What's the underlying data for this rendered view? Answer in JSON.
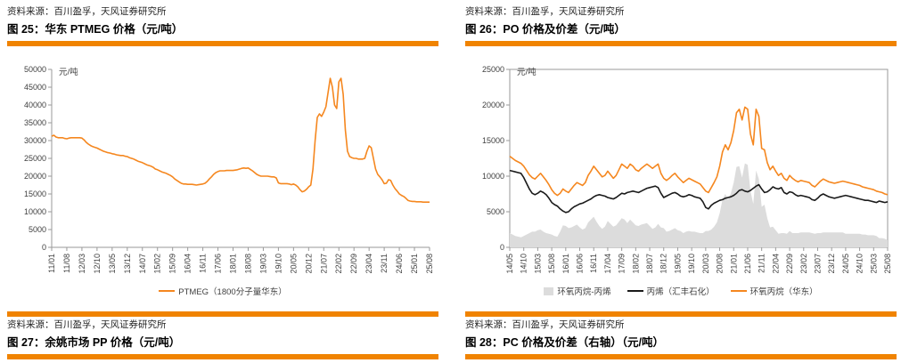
{
  "theme": {
    "accent": "#F08300",
    "orange_line": "#F5871F",
    "black_line": "#1A1A1A",
    "gray_area": "#DCDCDC",
    "axis": "#9A9A9A",
    "tick_text": "#404040"
  },
  "panels": [
    {
      "source_top": "资料来源：百川盈孚，天风证券研究所",
      "title": "图 25：华东 PTMEG 价格（元/吨）",
      "source_bottom": "资料来源：百川盈孚，天风证券研究所",
      "next_title": "图 27：余姚市场 PP 价格（元/吨）"
    },
    {
      "source_top": "资料来源：百川盈孚，天风证券研究所",
      "title": "图 26：PO 价格及价差（元/吨）",
      "source_bottom": "资料来源：百川盈孚，天风证券研究所",
      "next_title": "图 28：PC 价格及价差（右轴）（元/吨）"
    }
  ],
  "chart_data": [
    {
      "type": "line",
      "title": "图 25：华东 PTMEG 价格（元/吨）",
      "unit_label": "元/吨",
      "ylim": [
        0,
        50000
      ],
      "ytick_step": 5000,
      "frame": false,
      "grid": false,
      "legend_position": "bottom",
      "x_frequency": "monthly",
      "x_range": [
        "2011/01",
        "2025/08"
      ],
      "xtick_labels": [
        "11/01",
        "11/08",
        "12/03",
        "12/10",
        "13/05",
        "13/12",
        "14/07",
        "15/02",
        "15/09",
        "16/04",
        "16/11",
        "17/06",
        "18/01",
        "18/08",
        "19/03",
        "19/10",
        "20/05",
        "20/12",
        "21/07",
        "22/02",
        "22/09",
        "23/04",
        "23/11",
        "24/06",
        "25/01",
        "25/08"
      ],
      "series": [
        {
          "name": "PTMEG（1800分子量华东）",
          "color": "#F5871F",
          "style": "line",
          "values": [
            31200,
            31500,
            31000,
            30800,
            30800,
            30800,
            30600,
            30500,
            30700,
            30800,
            30800,
            30800,
            30800,
            30800,
            30700,
            30200,
            29500,
            29000,
            28600,
            28300,
            28100,
            27900,
            27600,
            27300,
            27000,
            26800,
            26600,
            26500,
            26300,
            26200,
            26000,
            25900,
            25800,
            25800,
            25600,
            25500,
            25200,
            25000,
            24800,
            24500,
            24200,
            24000,
            23800,
            23500,
            23200,
            23000,
            22800,
            22500,
            22000,
            21800,
            21500,
            21200,
            21000,
            20800,
            20500,
            20200,
            19800,
            19200,
            18800,
            18400,
            18000,
            17800,
            17800,
            17700,
            17700,
            17700,
            17600,
            17500,
            17600,
            17700,
            17800,
            18000,
            18500,
            19200,
            19800,
            20500,
            21000,
            21300,
            21500,
            21500,
            21500,
            21600,
            21600,
            21600,
            21600,
            21700,
            21800,
            22000,
            22200,
            22300,
            22200,
            22300,
            21900,
            21500,
            21000,
            20500,
            20200,
            20000,
            20000,
            20000,
            20000,
            19900,
            19800,
            19800,
            19500,
            18100,
            17900,
            17900,
            17900,
            17900,
            17800,
            17600,
            17800,
            17500,
            17000,
            16200,
            15600,
            15800,
            16300,
            17000,
            17500,
            22000,
            30000,
            36500,
            37500,
            36800,
            38000,
            39500,
            43500,
            47500,
            45000,
            40000,
            39000,
            46500,
            47500,
            43000,
            33000,
            27000,
            25500,
            25200,
            25000,
            25000,
            24800,
            24800,
            24800,
            25000,
            27000,
            28500,
            28000,
            25000,
            22000,
            20500,
            19800,
            19000,
            17900,
            18000,
            19000,
            18800,
            17500,
            16500,
            15800,
            15000,
            14600,
            14300,
            13800,
            13200,
            13000,
            12900,
            12900,
            12800,
            12800,
            12800,
            12700,
            12700,
            12700,
            12700
          ]
        }
      ]
    },
    {
      "type": "line+area",
      "title": "图 26：PO 价格及价差（元/吨）",
      "unit_label": "元/吨",
      "ylim": [
        0,
        25000
      ],
      "ytick_step": 5000,
      "frame": true,
      "grid": false,
      "legend_position": "bottom",
      "x_frequency": "monthly",
      "x_range": [
        "2014/05",
        "2025/08"
      ],
      "xtick_labels": [
        "14/05",
        "14/10",
        "15/03",
        "15/08",
        "16/01",
        "16/06",
        "16/11",
        "17/04",
        "17/09",
        "18/02",
        "18/07",
        "18/12",
        "19/05",
        "19/10",
        "20/03",
        "20/08",
        "21/01",
        "21/06",
        "21/11",
        "22/04",
        "22/09",
        "23/02",
        "23/07",
        "23/12",
        "24/05",
        "24/10",
        "25/03",
        "25/08"
      ],
      "series": [
        {
          "name": "环氧丙烷-丙烯",
          "color": "#DCDCDC",
          "style": "area",
          "computed_as": {
            "minuend": 2,
            "subtrahend": 1
          }
        },
        {
          "name": "丙烯（汇丰石化）",
          "color": "#1A1A1A",
          "style": "line",
          "values": [
            10800,
            10700,
            10600,
            10500,
            10400,
            9800,
            9000,
            8200,
            7600,
            7400,
            7600,
            7900,
            7700,
            7400,
            6900,
            6300,
            6000,
            5800,
            5400,
            5100,
            4900,
            5000,
            5400,
            5700,
            5900,
            6100,
            6200,
            6400,
            6600,
            6800,
            7100,
            7300,
            7400,
            7300,
            7200,
            7000,
            6900,
            6800,
            7000,
            7300,
            7600,
            7500,
            7700,
            7800,
            7900,
            7800,
            7700,
            7900,
            8100,
            8300,
            8400,
            8500,
            8600,
            8400,
            7600,
            7000,
            7200,
            7400,
            7600,
            7700,
            7500,
            7200,
            7100,
            7200,
            7400,
            7300,
            7100,
            7000,
            6900,
            6400,
            5600,
            5400,
            5900,
            6200,
            6400,
            6600,
            6700,
            6900,
            7000,
            7100,
            7300,
            7600,
            8000,
            8100,
            7900,
            7800,
            8000,
            8300,
            8600,
            8800,
            8200,
            7700,
            7800,
            8100,
            8500,
            8300,
            8200,
            8400,
            7700,
            7500,
            7800,
            7700,
            7400,
            7200,
            7300,
            7200,
            7100,
            7000,
            6700,
            6600,
            6900,
            7300,
            7500,
            7300,
            7100,
            7000,
            6900,
            7000,
            7100,
            7200,
            7300,
            7200,
            7100,
            7000,
            6900,
            6800,
            6700,
            6600,
            6600,
            6500,
            6400,
            6300,
            6500,
            6400,
            6300,
            6400
          ]
        },
        {
          "name": "环氧丙烷（华东）",
          "color": "#F5871F",
          "style": "line",
          "values": [
            12800,
            12500,
            12200,
            12000,
            11800,
            11400,
            10800,
            10200,
            9800,
            9600,
            10000,
            10400,
            9900,
            9400,
            8800,
            8100,
            7600,
            7300,
            7600,
            8200,
            7900,
            7700,
            8200,
            8700,
            9100,
            8900,
            8700,
            9100,
            10100,
            10700,
            11400,
            10900,
            10400,
            9900,
            10100,
            10700,
            10200,
            9700,
            10100,
            10900,
            11700,
            11400,
            11100,
            11700,
            11400,
            10900,
            10700,
            11100,
            11400,
            11700,
            11400,
            11100,
            11400,
            11700,
            10400,
            9700,
            9400,
            9700,
            10100,
            10400,
            9900,
            9500,
            9100,
            9400,
            9700,
            9500,
            9300,
            9100,
            8900,
            8400,
            7900,
            7700,
            8400,
            9100,
            9900,
            11400,
            13400,
            14400,
            13700,
            14700,
            16400,
            18900,
            19400,
            17900,
            19700,
            19400,
            15900,
            14400,
            19400,
            18400,
            13900,
            13700,
            11900,
            10900,
            11400,
            10700,
            10100,
            10400,
            9700,
            9400,
            10100,
            9700,
            9400,
            9200,
            9400,
            9300,
            9200,
            9100,
            8700,
            8500,
            8900,
            9300,
            9600,
            9400,
            9200,
            9100,
            9000,
            9100,
            9200,
            9300,
            9200,
            9100,
            9000,
            8900,
            8800,
            8700,
            8500,
            8400,
            8300,
            8200,
            8100,
            7900,
            7800,
            7700,
            7500,
            7400
          ]
        }
      ]
    }
  ]
}
